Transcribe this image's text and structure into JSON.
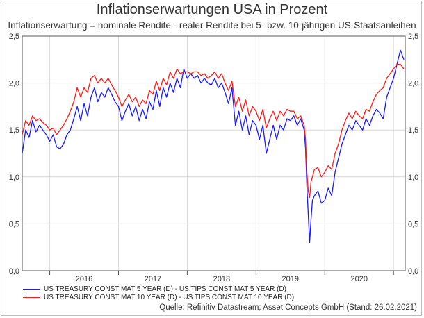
{
  "header": {
    "title": "Inflationserwartungen USA in Prozent",
    "subtitle": "Inflationserwartung = nominale Rendite - realer Rendite bei 5- bzw. 10-jährigen US-Staatsanleihen"
  },
  "source": "Quelle: Refinitiv Datastream; Asset Concepts GmbH (Stand: 26.02.2021)",
  "chart_data": {
    "type": "line",
    "title": "Inflationserwartungen USA in Prozent",
    "subtitle": "Inflationserwartung = nominale Rendite - realer Rendite bei 5- bzw. 10-jährigen US-Staatsanleihen",
    "xlabel": "",
    "ylabel": "",
    "xlim": [
      2015.6,
      2021.17
    ],
    "ylim": [
      0,
      2.5
    ],
    "x_tick_labels": [
      "2016",
      "2017",
      "2018",
      "2019",
      "2020"
    ],
    "y_tick_labels": [
      "0,0",
      "0,5",
      "1,0",
      "1,5",
      "2,0",
      "2,5"
    ],
    "grid": true,
    "legend_position": "bottom-left",
    "series": [
      {
        "name": "US TREASURY CONST MAT 5 YEAR (D) - US TIPS CONST MAT 5 YEAR (D)",
        "color": "#1a1aff",
        "x": [
          2015.6,
          2015.65,
          2015.7,
          2015.75,
          2015.8,
          2015.85,
          2015.9,
          2015.95,
          2016.0,
          2016.05,
          2016.1,
          2016.15,
          2016.2,
          2016.25,
          2016.3,
          2016.35,
          2016.4,
          2016.45,
          2016.5,
          2016.55,
          2016.6,
          2016.65,
          2016.7,
          2016.75,
          2016.8,
          2016.85,
          2016.9,
          2016.95,
          2017.0,
          2017.05,
          2017.1,
          2017.15,
          2017.2,
          2017.25,
          2017.3,
          2017.35,
          2017.4,
          2017.45,
          2017.5,
          2017.55,
          2017.6,
          2017.65,
          2017.7,
          2017.75,
          2017.8,
          2017.85,
          2017.9,
          2017.95,
          2018.0,
          2018.05,
          2018.1,
          2018.15,
          2018.2,
          2018.25,
          2018.3,
          2018.35,
          2018.4,
          2018.45,
          2018.5,
          2018.55,
          2018.6,
          2018.65,
          2018.7,
          2018.75,
          2018.8,
          2018.85,
          2018.9,
          2018.95,
          2019.0,
          2019.05,
          2019.1,
          2019.15,
          2019.2,
          2019.25,
          2019.3,
          2019.35,
          2019.4,
          2019.45,
          2019.5,
          2019.55,
          2019.6,
          2019.65,
          2019.7,
          2019.72,
          2019.74,
          2019.76,
          2019.78,
          2019.8,
          2019.82,
          2019.85,
          2019.9,
          2019.95,
          2020.0,
          2020.05,
          2020.1,
          2020.15,
          2020.2,
          2020.25,
          2020.3,
          2020.35,
          2020.4,
          2020.45,
          2020.5,
          2020.55,
          2020.6,
          2020.65,
          2020.7,
          2020.75,
          2020.8,
          2020.85,
          2020.9,
          2020.95,
          2021.0,
          2021.05,
          2021.1,
          2021.15
        ],
        "values": [
          1.25,
          1.5,
          1.42,
          1.6,
          1.48,
          1.55,
          1.5,
          1.45,
          1.38,
          1.45,
          1.32,
          1.3,
          1.35,
          1.45,
          1.5,
          1.62,
          1.75,
          1.6,
          1.78,
          1.65,
          1.85,
          1.95,
          1.8,
          1.9,
          1.85,
          1.95,
          1.88,
          1.8,
          1.75,
          1.6,
          1.7,
          1.78,
          1.65,
          1.75,
          1.6,
          1.72,
          1.62,
          1.8,
          1.72,
          1.92,
          1.75,
          1.95,
          1.85,
          2.0,
          1.9,
          2.05,
          1.95,
          2.15,
          2.05,
          2.1,
          2.05,
          2.08,
          2.0,
          2.05,
          2.0,
          1.98,
          2.05,
          1.95,
          2.0,
          1.9,
          1.78,
          1.95,
          1.55,
          1.7,
          1.5,
          1.65,
          1.45,
          1.6,
          1.55,
          1.4,
          1.55,
          1.25,
          1.4,
          1.55,
          1.4,
          1.55,
          1.5,
          1.62,
          1.6,
          1.65,
          1.55,
          1.62,
          1.5,
          1.3,
          0.9,
          0.6,
          0.3,
          0.55,
          0.75,
          0.8,
          0.85,
          0.72,
          0.75,
          0.88,
          0.8,
          1.05,
          1.2,
          1.35,
          1.45,
          1.55,
          1.5,
          1.6,
          1.55,
          1.5,
          1.62,
          1.55,
          1.65,
          1.72,
          1.68,
          1.62,
          1.85,
          1.95,
          2.05,
          2.2,
          2.35,
          2.25
        ]
      },
      {
        "name": "US TREASURY CONST MAT 10 YEAR (D) - US TIPS CONST MAT 10 YEAR (D)",
        "color": "#ff1a1a",
        "x": [
          2015.6,
          2015.65,
          2015.7,
          2015.75,
          2015.8,
          2015.85,
          2015.9,
          2015.95,
          2016.0,
          2016.05,
          2016.1,
          2016.15,
          2016.2,
          2016.25,
          2016.3,
          2016.35,
          2016.4,
          2016.45,
          2016.5,
          2016.55,
          2016.6,
          2016.65,
          2016.7,
          2016.75,
          2016.8,
          2016.85,
          2016.9,
          2016.95,
          2017.0,
          2017.05,
          2017.1,
          2017.15,
          2017.2,
          2017.25,
          2017.3,
          2017.35,
          2017.4,
          2017.45,
          2017.5,
          2017.55,
          2017.6,
          2017.65,
          2017.7,
          2017.75,
          2017.8,
          2017.85,
          2017.9,
          2017.95,
          2018.0,
          2018.05,
          2018.1,
          2018.15,
          2018.2,
          2018.25,
          2018.3,
          2018.35,
          2018.4,
          2018.45,
          2018.5,
          2018.55,
          2018.6,
          2018.65,
          2018.7,
          2018.75,
          2018.8,
          2018.85,
          2018.9,
          2018.95,
          2019.0,
          2019.05,
          2019.1,
          2019.15,
          2019.2,
          2019.25,
          2019.3,
          2019.35,
          2019.4,
          2019.45,
          2019.5,
          2019.55,
          2019.6,
          2019.65,
          2019.7,
          2019.72,
          2019.74,
          2019.76,
          2019.78,
          2019.8,
          2019.82,
          2019.85,
          2019.9,
          2019.95,
          2020.0,
          2020.05,
          2020.1,
          2020.15,
          2020.2,
          2020.25,
          2020.3,
          2020.35,
          2020.4,
          2020.45,
          2020.5,
          2020.55,
          2020.6,
          2020.65,
          2020.7,
          2020.75,
          2020.8,
          2020.85,
          2020.9,
          2020.95,
          2021.0,
          2021.05,
          2021.1,
          2021.15
        ],
        "values": [
          1.45,
          1.6,
          1.55,
          1.65,
          1.6,
          1.62,
          1.58,
          1.55,
          1.5,
          1.52,
          1.45,
          1.5,
          1.55,
          1.62,
          1.7,
          1.8,
          1.95,
          1.85,
          1.95,
          1.9,
          2.05,
          2.08,
          2.0,
          2.05,
          2.0,
          2.05,
          1.98,
          1.92,
          1.85,
          1.75,
          1.82,
          1.88,
          1.8,
          1.85,
          1.75,
          1.82,
          1.78,
          1.92,
          1.88,
          2.02,
          1.92,
          2.05,
          1.98,
          2.12,
          2.05,
          2.15,
          2.1,
          2.12,
          2.12,
          2.1,
          2.12,
          2.12,
          2.08,
          2.1,
          2.05,
          2.08,
          2.12,
          2.05,
          2.1,
          2.0,
          1.92,
          2.02,
          1.75,
          1.85,
          1.7,
          1.82,
          1.65,
          1.75,
          1.7,
          1.6,
          1.72,
          1.52,
          1.62,
          1.7,
          1.6,
          1.7,
          1.65,
          1.72,
          1.7,
          1.7,
          1.62,
          1.65,
          1.55,
          1.4,
          1.05,
          0.85,
          0.78,
          0.95,
          1.0,
          1.08,
          1.1,
          1.0,
          1.05,
          1.12,
          1.08,
          1.25,
          1.35,
          1.5,
          1.6,
          1.68,
          1.62,
          1.7,
          1.65,
          1.62,
          1.72,
          1.7,
          1.8,
          1.88,
          1.92,
          1.95,
          2.05,
          2.1,
          2.15,
          2.2,
          2.2,
          2.15
        ]
      }
    ]
  }
}
